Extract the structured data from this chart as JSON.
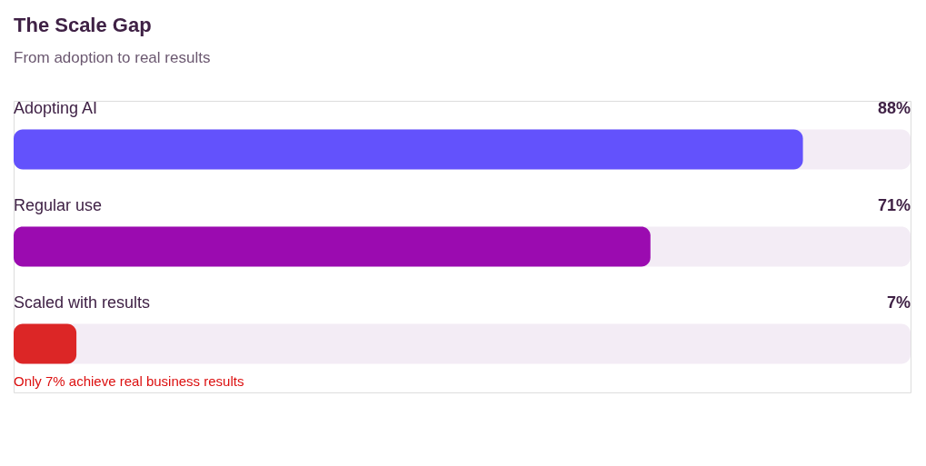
{
  "chart_data": {
    "type": "bar",
    "orientation": "horizontal",
    "title": "The Scale Gap",
    "subtitle": "From adoption to real results",
    "categories": [
      "Adopting AI",
      "Regular use",
      "Scaled with results"
    ],
    "values": [
      88,
      71,
      7
    ],
    "colors": [
      "#6352fc",
      "#9b0bb0",
      "#dc2626"
    ],
    "xlim": [
      0,
      100
    ],
    "tick_labels": false,
    "value_labels": [
      "88%",
      "71%",
      "7%"
    ],
    "annotations": [
      "Only 7% achieve real business results"
    ]
  }
}
